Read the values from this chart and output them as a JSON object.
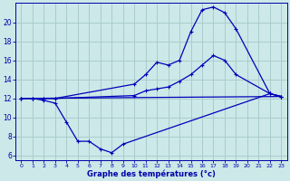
{
  "background_color": "#cce8e8",
  "grid_color": "#aacccc",
  "line_color": "#0000bb",
  "xlabel": "Graphe des températures (°c)",
  "xlim": [
    -0.5,
    23.5
  ],
  "ylim": [
    5.5,
    22
  ],
  "yticks": [
    6,
    8,
    10,
    12,
    14,
    16,
    18,
    20
  ],
  "xticks": [
    0,
    1,
    2,
    3,
    4,
    5,
    6,
    7,
    8,
    9,
    10,
    11,
    12,
    13,
    14,
    15,
    16,
    17,
    18,
    19,
    20,
    21,
    22,
    23
  ],
  "curve_top": [
    [
      0,
      12
    ],
    [
      1,
      12
    ],
    [
      2,
      12
    ],
    [
      3,
      12
    ],
    [
      10,
      13.5
    ],
    [
      11,
      14.5
    ],
    [
      12,
      15.8
    ],
    [
      13,
      15.5
    ],
    [
      14,
      16.0
    ],
    [
      15,
      19.0
    ],
    [
      16,
      21.3
    ],
    [
      17,
      21.6
    ],
    [
      18,
      21.0
    ],
    [
      19,
      19.3
    ],
    [
      20,
      null
    ],
    [
      21,
      null
    ],
    [
      22,
      12.5
    ],
    [
      23,
      12.2
    ]
  ],
  "curve_mid": [
    [
      0,
      12
    ],
    [
      1,
      12
    ],
    [
      2,
      12
    ],
    [
      3,
      12
    ],
    [
      10,
      12.3
    ],
    [
      11,
      12.8
    ],
    [
      12,
      13.0
    ],
    [
      13,
      13.2
    ],
    [
      14,
      13.8
    ],
    [
      15,
      14.5
    ],
    [
      16,
      15.5
    ],
    [
      17,
      16.5
    ],
    [
      18,
      16.0
    ],
    [
      19,
      14.5
    ],
    [
      20,
      null
    ],
    [
      21,
      null
    ],
    [
      22,
      12.5
    ],
    [
      23,
      12.2
    ]
  ],
  "curve_bot": [
    [
      0,
      12
    ],
    [
      1,
      12
    ],
    [
      2,
      11.8
    ],
    [
      3,
      11.5
    ],
    [
      4,
      9.5
    ],
    [
      5,
      7.5
    ],
    [
      6,
      7.5
    ],
    [
      7,
      6.7
    ],
    [
      8,
      6.3
    ],
    [
      9,
      7.2
    ],
    [
      22,
      12.5
    ],
    [
      23,
      12.2
    ]
  ],
  "curve_flat": [
    [
      0,
      12
    ],
    [
      23,
      12.2
    ]
  ]
}
